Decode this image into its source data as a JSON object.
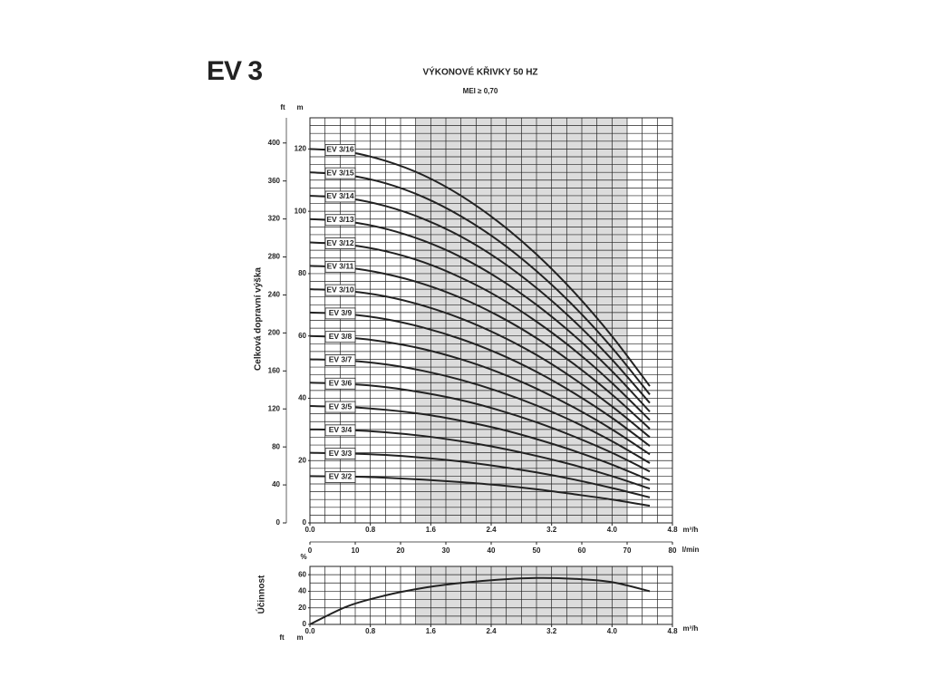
{
  "title": "EV 3",
  "chart_data": [
    {
      "type": "line",
      "title": "VÝKONOVÉ KŘIVKY 50 HZ",
      "subtitle": "MEI ≥ 0,70",
      "y_label": "Celková dopravní výška",
      "y_unit": "m",
      "y2_unit": "ft",
      "x_unit": "m³/h",
      "x2_unit": "l/min",
      "x": [
        0,
        0.5,
        1,
        1.5,
        2,
        2.5,
        3,
        3.5,
        4,
        4.5
      ],
      "xlim": [
        0,
        4.8
      ],
      "xticks": [
        {
          "value": 0,
          "label": "0.0"
        },
        {
          "value": 0.8,
          "label": "0.8"
        },
        {
          "value": 1.6,
          "label": "1.6"
        },
        {
          "value": 2.4,
          "label": "2.4"
        },
        {
          "value": 3.2,
          "label": "3.2"
        },
        {
          "value": 4,
          "label": "4.0"
        },
        {
          "value": 4.8,
          "label": "4.8"
        }
      ],
      "x2lim": [
        0,
        80
      ],
      "x2ticks": [
        0,
        10,
        20,
        30,
        40,
        50,
        60,
        70,
        80
      ],
      "ylim": [
        0,
        130
      ],
      "yticks": [
        0,
        20,
        40,
        60,
        80,
        100,
        120
      ],
      "y2lim": [
        0,
        426.5
      ],
      "y2ticks": [
        0,
        40,
        80,
        120,
        160,
        200,
        240,
        280,
        320,
        360,
        400
      ],
      "grid": true,
      "xgrid_step": 0.2,
      "ygrid_step": 2.5,
      "highlight": [
        1.4,
        4.2
      ],
      "series": [
        {
          "name": "EV 3/16",
          "color": "#222",
          "values": [
            120,
            119.1,
            116.2,
            111.6,
            105.0,
            96.5,
            86.2,
            74.0,
            59.9,
            43.9
          ]
        },
        {
          "name": "EV 3/15",
          "color": "#222",
          "values": [
            112.5,
            111.6,
            109.0,
            104.6,
            98.4,
            90.5,
            80.8,
            69.4,
            56.2,
            41.2
          ]
        },
        {
          "name": "EV 3/14",
          "color": "#222",
          "values": [
            105,
            104.2,
            101.7,
            97.6,
            91.9,
            84.5,
            75.4,
            64.7,
            52.4,
            38.5
          ]
        },
        {
          "name": "EV 3/13",
          "color": "#222",
          "values": [
            97.5,
            96.7,
            94.4,
            90.6,
            85.3,
            78.4,
            70.0,
            60.1,
            48.7,
            35.7
          ]
        },
        {
          "name": "EV 3/12",
          "color": "#222",
          "values": [
            90,
            89.3,
            87.2,
            83.7,
            78.7,
            72.4,
            64.6,
            55.5,
            44.9,
            33.0
          ]
        },
        {
          "name": "EV 3/11",
          "color": "#222",
          "values": [
            82.5,
            81.9,
            79.9,
            76.7,
            72.2,
            66.4,
            59.3,
            50.9,
            41.2,
            30.2
          ]
        },
        {
          "name": "EV 3/10",
          "color": "#222",
          "values": [
            75,
            74.4,
            72.7,
            69.7,
            65.6,
            60.3,
            53.9,
            46.2,
            37.4,
            27.5
          ]
        },
        {
          "name": "EV 3/9",
          "color": "#222",
          "values": [
            67.5,
            67.0,
            65.4,
            62.7,
            59.0,
            54.3,
            48.5,
            41.6,
            33.7,
            24.7
          ]
        },
        {
          "name": "EV 3/8",
          "color": "#222",
          "values": [
            60,
            59.5,
            58.1,
            55.8,
            52.5,
            48.3,
            43.1,
            37.0,
            30.0,
            22.0
          ]
        },
        {
          "name": "EV 3/7",
          "color": "#222",
          "values": [
            52.5,
            52.1,
            50.9,
            48.8,
            45.9,
            42.2,
            37.7,
            32.4,
            26.2,
            19.2
          ]
        },
        {
          "name": "EV 3/6",
          "color": "#222",
          "values": [
            45,
            44.6,
            43.6,
            41.8,
            39.4,
            36.2,
            32.3,
            27.7,
            22.5,
            16.5
          ]
        },
        {
          "name": "EV 3/5",
          "color": "#222",
          "values": [
            37.5,
            37.2,
            36.3,
            34.9,
            32.8,
            30.2,
            26.9,
            23.1,
            18.7,
            13.7
          ]
        },
        {
          "name": "EV 3/4",
          "color": "#222",
          "values": [
            30,
            29.8,
            29.1,
            27.9,
            26.2,
            24.1,
            21.5,
            18.5,
            15.0,
            11.0
          ]
        },
        {
          "name": "EV 3/3",
          "color": "#222",
          "values": [
            22.5,
            22.3,
            21.8,
            20.9,
            19.7,
            18.1,
            16.2,
            13.9,
            11.2,
            8.2
          ]
        },
        {
          "name": "EV 3/2",
          "color": "#222",
          "values": [
            15,
            14.9,
            14.5,
            13.9,
            13.1,
            12.1,
            10.8,
            9.2,
            7.5,
            5.5
          ]
        }
      ]
    },
    {
      "type": "line",
      "y_label": "Účinnost",
      "y_unit": "%",
      "x_unit": "m³/h",
      "corner_units": [
        "ft",
        "m"
      ],
      "x": [
        0,
        0.5,
        1,
        1.5,
        2,
        2.5,
        3,
        3.5,
        4,
        4.5
      ],
      "xlim": [
        0,
        4.8
      ],
      "xticks": [
        {
          "value": 0,
          "label": "0.0"
        },
        {
          "value": 0.8,
          "label": "0.8"
        },
        {
          "value": 1.6,
          "label": "1.6"
        },
        {
          "value": 2.4,
          "label": "2.4"
        },
        {
          "value": 3.2,
          "label": "3.2"
        },
        {
          "value": 4,
          "label": "4.0"
        },
        {
          "value": 4.8,
          "label": "4.8"
        }
      ],
      "ylim": [
        0,
        70
      ],
      "yticks": [
        0,
        20,
        40,
        60
      ],
      "grid": true,
      "xgrid_step": 0.2,
      "ygrid_step": 10,
      "highlight": [
        1.4,
        4.2
      ],
      "series": [
        {
          "color": "#222",
          "values": [
            0,
            22,
            35,
            44,
            50,
            54,
            56,
            55,
            51,
            40
          ]
        }
      ]
    }
  ]
}
